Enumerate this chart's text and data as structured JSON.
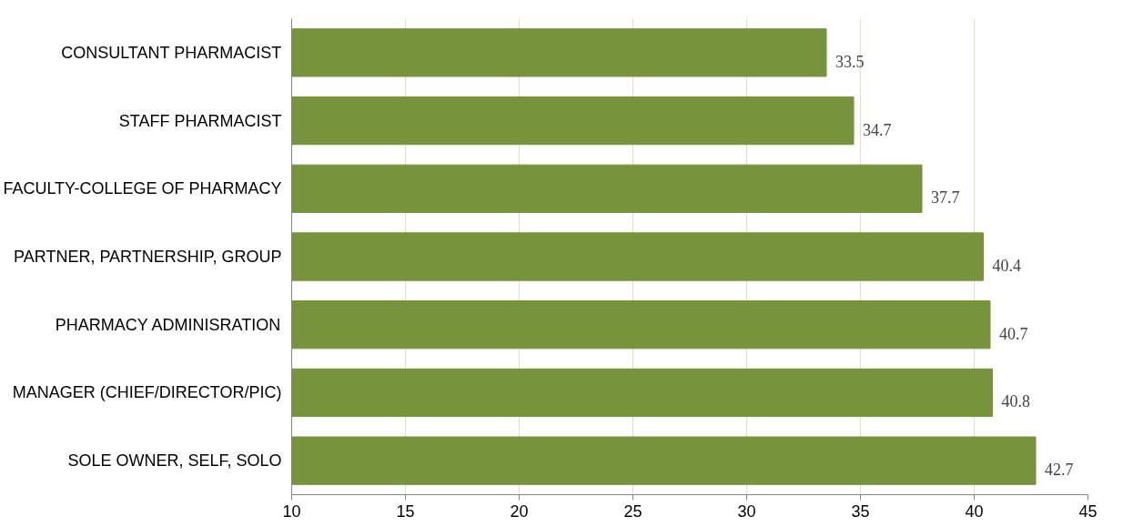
{
  "chart_data": {
    "type": "bar",
    "orientation": "horizontal",
    "categories": [
      "CONSULTANT PHARMACIST",
      "STAFF PHARMACIST",
      "FACULTY-COLLEGE OF PHARMACY",
      "PARTNER, PARTNERSHIP, GROUP",
      "PHARMACY ADMINISRATION",
      "MANAGER (CHIEF/DIRECTOR/PIC)",
      "SOLE OWNER, SELF, SOLO"
    ],
    "values": [
      33.5,
      34.7,
      37.7,
      40.4,
      40.7,
      40.8,
      42.7
    ],
    "color": "#77933c",
    "xlim": [
      10,
      45
    ],
    "xticks": [
      10,
      15,
      20,
      25,
      30,
      35,
      40,
      45
    ],
    "grid": "x",
    "data_labels": true
  }
}
